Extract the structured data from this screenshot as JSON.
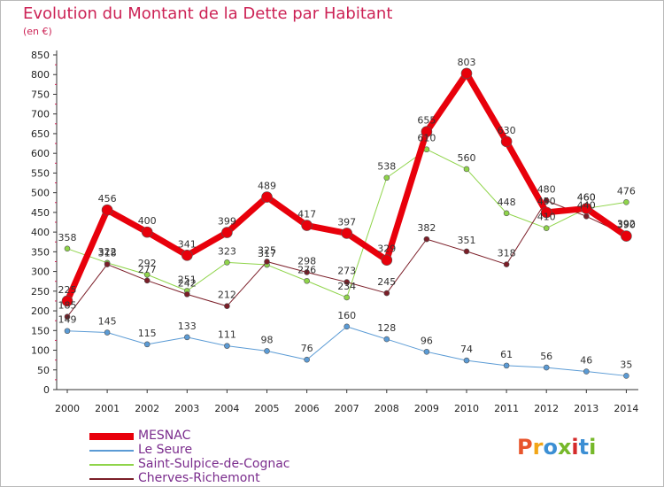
{
  "header": {
    "title": "Evolution du Montant de la Dette par Habitant",
    "subtitle": "(en €)"
  },
  "logo": {
    "text": "Proxiti",
    "colors": [
      "#e8552c",
      "#f2a516",
      "#3c8fd4",
      "#76b82a",
      "#d42a2a",
      "#3c8fd4",
      "#76b82a"
    ]
  },
  "chart_data": {
    "type": "line",
    "title": "Evolution du Montant de la Dette par Habitant",
    "ylabel": "(en €)",
    "x": [
      "2000",
      "2001",
      "2002",
      "2003",
      "2004",
      "2005",
      "2006",
      "2007",
      "2008",
      "2009",
      "2010",
      "2011",
      "2012",
      "2013",
      "2014"
    ],
    "ylim": [
      0,
      850
    ],
    "yticks": [
      0,
      50,
      100,
      150,
      200,
      250,
      300,
      350,
      400,
      450,
      500,
      550,
      600,
      650,
      700,
      750,
      800,
      850
    ],
    "grid": false,
    "legend_position": "bottom-left",
    "series": [
      {
        "name": "MESNAC",
        "color": "#e8000b",
        "width": 7,
        "values": [
          225,
          456,
          400,
          341,
          399,
          489,
          417,
          397,
          329,
          655,
          803,
          630,
          450,
          460,
          390
        ]
      },
      {
        "name": "Le Seure",
        "color": "#5b9bd5",
        "width": 1,
        "values": [
          149,
          145,
          115,
          133,
          111,
          98,
          76,
          160,
          128,
          96,
          74,
          61,
          56,
          46,
          35
        ]
      },
      {
        "name": "Saint-Sulpice-de-Cognac",
        "color": "#8fd44a",
        "width": 1,
        "values": [
          358,
          322,
          292,
          251,
          323,
          317,
          276,
          234,
          538,
          610,
          560,
          448,
          410,
          460,
          476
        ]
      },
      {
        "name": "Cherves-Richemont",
        "color": "#7b1e28",
        "width": 1,
        "values": [
          185,
          318,
          277,
          242,
          212,
          325,
          298,
          273,
          245,
          382,
          351,
          318,
          480,
          440,
          392
        ]
      }
    ]
  }
}
